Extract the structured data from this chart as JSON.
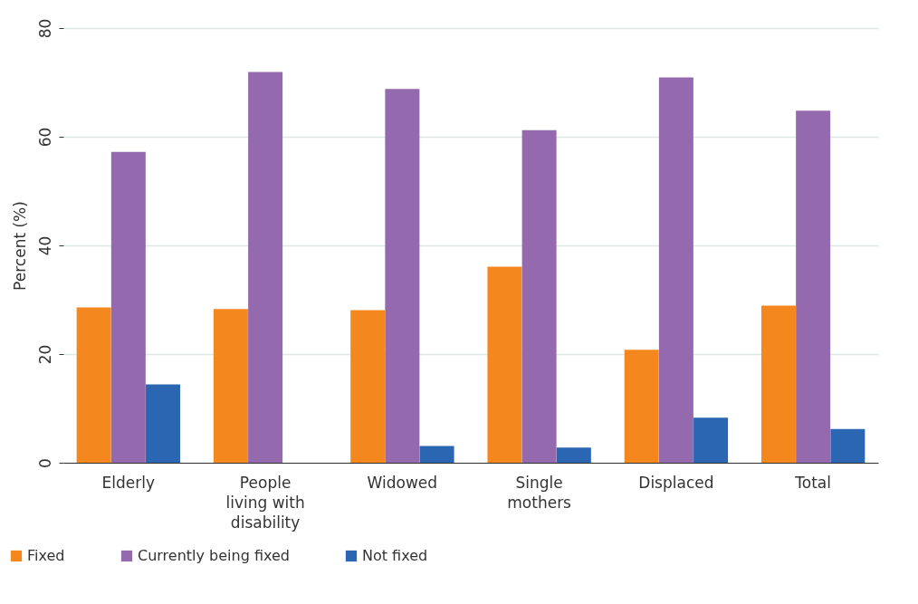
{
  "chart_data": {
    "type": "bar",
    "ylabel": "Percent (%)",
    "categories": [
      "Elderly",
      "People living with disability",
      "Widowed",
      "Single mothers",
      "Displaced",
      "Total"
    ],
    "series": [
      {
        "name": "Fixed",
        "color": "#f5871f",
        "values": [
          28.6,
          28.3,
          28.1,
          36.1,
          20.8,
          28.9
        ]
      },
      {
        "name": "Currently being fixed",
        "color": "#9469ad",
        "values": [
          57.2,
          71.9,
          68.8,
          61.2,
          70.9,
          64.8
        ]
      },
      {
        "name": "Not fixed",
        "color": "#2a66b1",
        "values": [
          14.4,
          0,
          3.1,
          2.8,
          8.3,
          6.2
        ]
      }
    ],
    "ylim": [
      0,
      80
    ],
    "yticks": [
      0,
      20,
      40,
      60,
      80
    ],
    "grid": "y",
    "legend": "bottom left"
  }
}
